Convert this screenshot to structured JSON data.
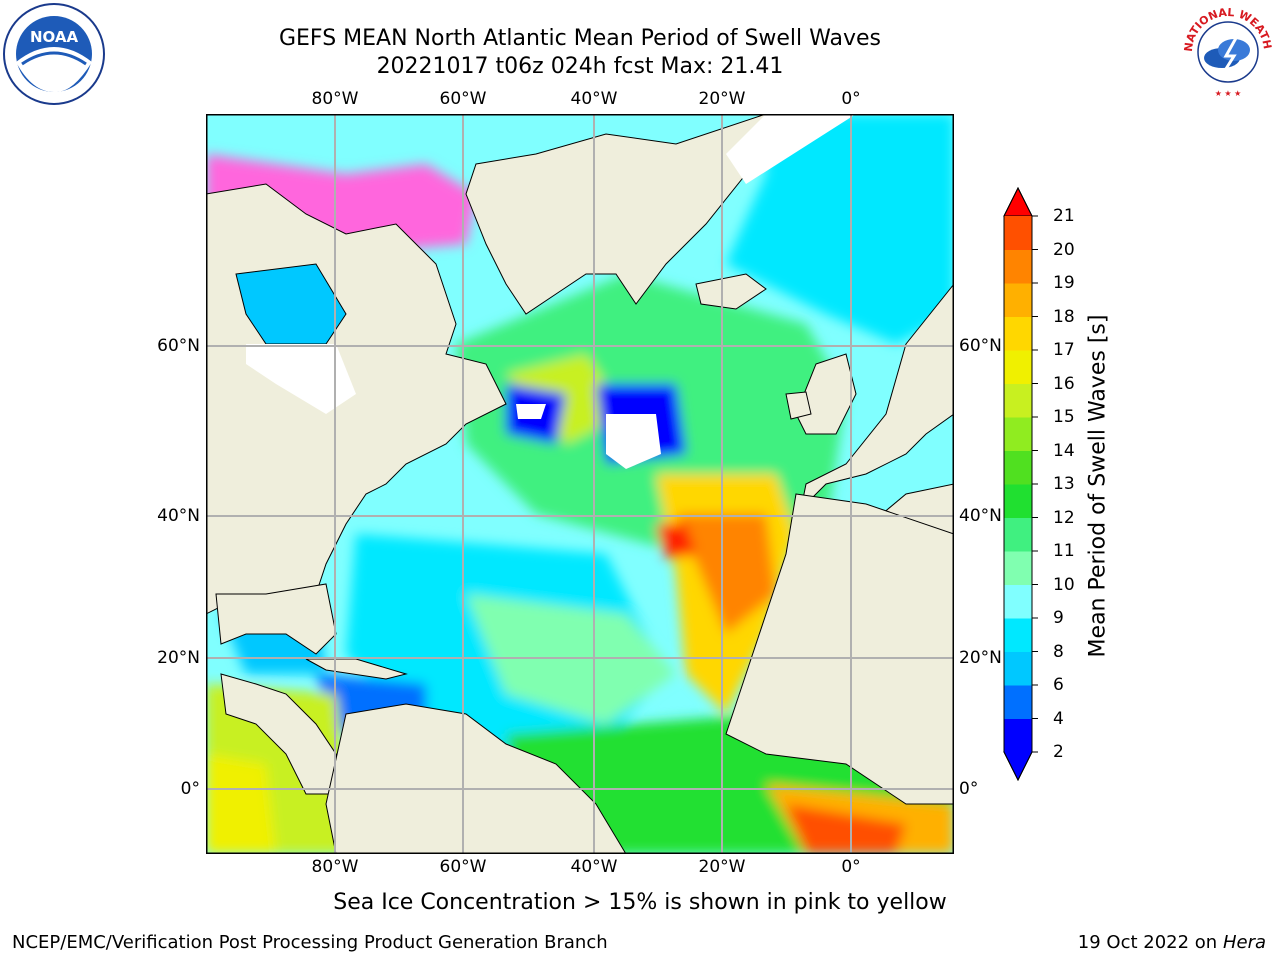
{
  "header": {
    "title": "GEFS MEAN North Atlantic Mean Period of Swell Waves",
    "subtitle": "20221017 t06z 024h fcst   Max: 21.41"
  },
  "map": {
    "longitude_labels": [
      "80°W",
      "60°W",
      "40°W",
      "20°W",
      "0°"
    ],
    "latitude_labels": [
      "60°N",
      "40°N",
      "20°N",
      "0°"
    ],
    "land_color": "#efeedc",
    "grid_color": "#b0b0b0"
  },
  "colorbar": {
    "label": "Mean Period of Swell Waves [s]",
    "ticks": [
      "2",
      "4",
      "6",
      "8",
      "9",
      "10",
      "11",
      "12",
      "13",
      "14",
      "15",
      "16",
      "17",
      "18",
      "19",
      "20",
      "21"
    ],
    "colors": [
      "#0000ff",
      "#0070ff",
      "#00c8ff",
      "#00e8ff",
      "#80ffff",
      "#80ffb0",
      "#40f080",
      "#20e030",
      "#50e020",
      "#90ec20",
      "#c8f020",
      "#f0f000",
      "#ffd700",
      "#ffb000",
      "#ff8400",
      "#ff5000",
      "#ff2000"
    ],
    "under_color": "#0000ff",
    "over_color": "#ff0000"
  },
  "ice_note": "Sea Ice Concentration > 15% is shown in pink to yellow",
  "footer": {
    "left": "NCEP/EMC/Verification Post Processing Product Generation Branch",
    "right_date": "19 Oct 2022 on",
    "right_host": "Hera"
  },
  "logos": {
    "noaa_text": "NOAA",
    "nws_text": "NATIONAL WEATHER SERVICE"
  }
}
